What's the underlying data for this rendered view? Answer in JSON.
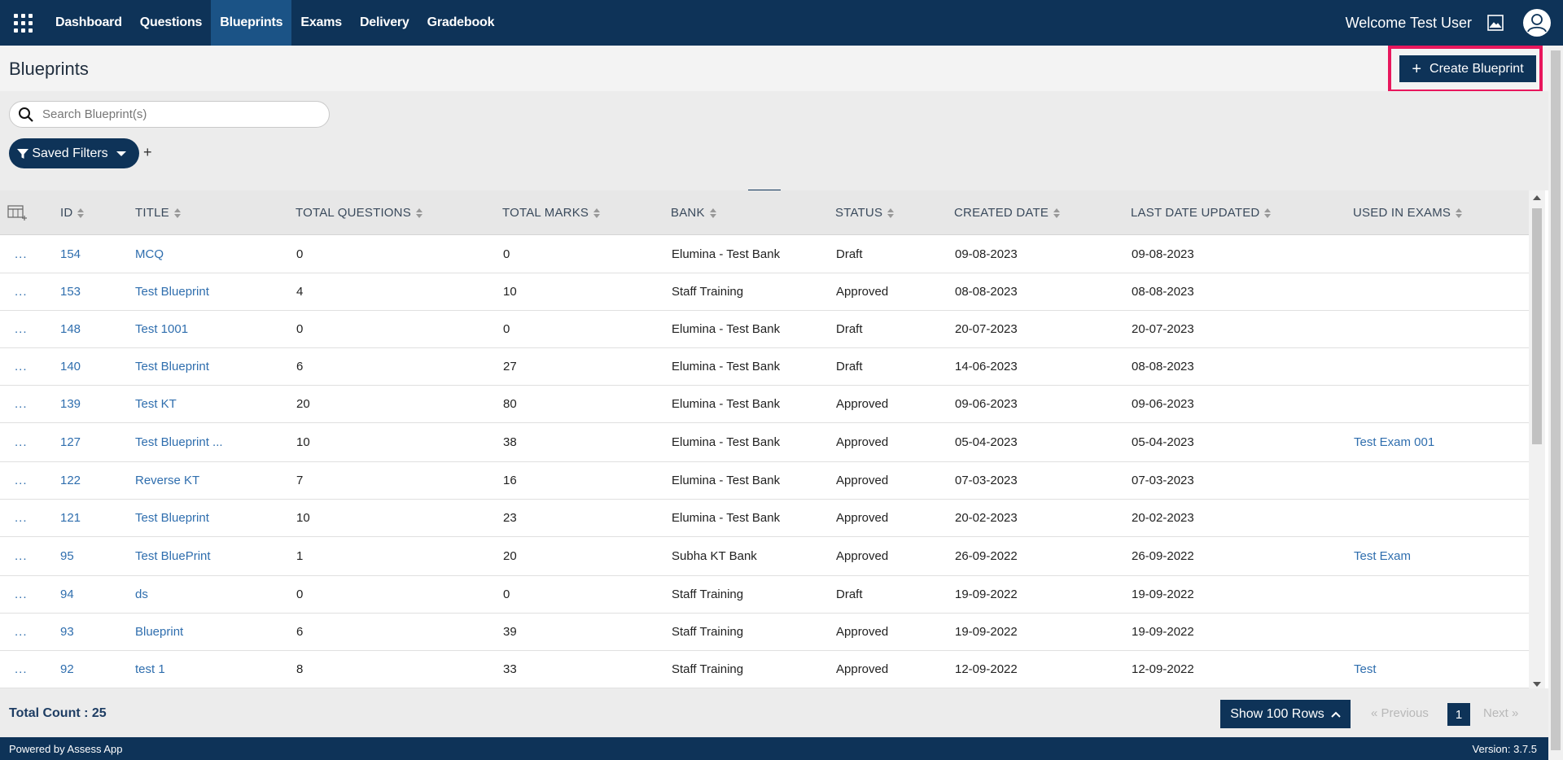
{
  "nav": {
    "items": [
      {
        "label": "Dashboard",
        "active": false
      },
      {
        "label": "Questions",
        "active": false
      },
      {
        "label": "Blueprints",
        "active": true
      },
      {
        "label": "Exams",
        "active": false
      },
      {
        "label": "Delivery",
        "active": false
      },
      {
        "label": "Gradebook",
        "active": false
      }
    ],
    "welcome": "Welcome Test User"
  },
  "page": {
    "title": "Blueprints",
    "create_label": "Create Blueprint"
  },
  "search": {
    "placeholder": "Search Blueprint(s)",
    "value": ""
  },
  "filters": {
    "saved_label": "Saved Filters",
    "add_label": "+"
  },
  "table": {
    "columns": [
      "ID",
      "TITLE",
      "TOTAL QUESTIONS",
      "TOTAL MARKS",
      "BANK",
      "STATUS",
      "CREATED DATE",
      "LAST DATE UPDATED",
      "USED IN EXAMS"
    ],
    "rows": [
      {
        "id": "154",
        "title": "MCQ",
        "total_questions": "0",
        "total_marks": "0",
        "bank": "Elumina - Test Bank",
        "status": "Draft",
        "created": "09-08-2023",
        "updated": "09-08-2023",
        "used_in": ""
      },
      {
        "id": "153",
        "title": "Test Blueprint",
        "total_questions": "4",
        "total_marks": "10",
        "bank": "Staff Training",
        "status": "Approved",
        "created": "08-08-2023",
        "updated": "08-08-2023",
        "used_in": ""
      },
      {
        "id": "148",
        "title": "Test 1001",
        "total_questions": "0",
        "total_marks": "0",
        "bank": "Elumina - Test Bank",
        "status": "Draft",
        "created": "20-07-2023",
        "updated": "20-07-2023",
        "used_in": ""
      },
      {
        "id": "140",
        "title": "Test Blueprint",
        "total_questions": "6",
        "total_marks": "27",
        "bank": "Elumina - Test Bank",
        "status": "Draft",
        "created": "14-06-2023",
        "updated": "08-08-2023",
        "used_in": ""
      },
      {
        "id": "139",
        "title": "Test KT",
        "total_questions": "20",
        "total_marks": "80",
        "bank": "Elumina - Test Bank",
        "status": "Approved",
        "created": "09-06-2023",
        "updated": "09-06-2023",
        "used_in": ""
      },
      {
        "id": "127",
        "title": "Test Blueprint ...",
        "total_questions": "10",
        "total_marks": "38",
        "bank": "Elumina - Test Bank",
        "status": "Approved",
        "created": "05-04-2023",
        "updated": "05-04-2023",
        "used_in": "Test Exam 001"
      },
      {
        "id": "122",
        "title": "Reverse KT",
        "total_questions": "7",
        "total_marks": "16",
        "bank": "Elumina - Test Bank",
        "status": "Approved",
        "created": "07-03-2023",
        "updated": "07-03-2023",
        "used_in": ""
      },
      {
        "id": "121",
        "title": "Test Blueprint",
        "total_questions": "10",
        "total_marks": "23",
        "bank": "Elumina - Test Bank",
        "status": "Approved",
        "created": "20-02-2023",
        "updated": "20-02-2023",
        "used_in": ""
      },
      {
        "id": "95",
        "title": "Test BluePrint",
        "total_questions": "1",
        "total_marks": "20",
        "bank": "Subha KT Bank",
        "status": "Approved",
        "created": "26-09-2022",
        "updated": "26-09-2022",
        "used_in": "Test Exam"
      },
      {
        "id": "94",
        "title": "ds",
        "total_questions": "0",
        "total_marks": "0",
        "bank": "Staff Training",
        "status": "Draft",
        "created": "19-09-2022",
        "updated": "19-09-2022",
        "used_in": ""
      },
      {
        "id": "93",
        "title": "Blueprint",
        "total_questions": "6",
        "total_marks": "39",
        "bank": "Staff Training",
        "status": "Approved",
        "created": "19-09-2022",
        "updated": "19-09-2022",
        "used_in": ""
      },
      {
        "id": "92",
        "title": "test 1",
        "total_questions": "8",
        "total_marks": "33",
        "bank": "Staff Training",
        "status": "Approved",
        "created": "12-09-2022",
        "updated": "12-09-2022",
        "used_in": "Test"
      }
    ],
    "row_menu": "..."
  },
  "footer": {
    "total_count": "Total Count : 25",
    "rows_label": "Show 100 Rows",
    "prev_label": "« Previous",
    "page": "1",
    "next_label": "Next »"
  },
  "bottom": {
    "powered": "Powered by Assess App",
    "version": "Version: 3.7.5"
  },
  "icons": {
    "apps": "apps-grid-icon",
    "image": "image-icon",
    "user": "user-avatar-icon",
    "search": "search-icon",
    "filter": "filter-icon",
    "columns": "column-chooser-icon",
    "sort": "sort-icon"
  },
  "colors": {
    "brand": "#0e3358",
    "nav_active": "#1b5386",
    "link": "#2f6eae",
    "highlight": "#e8175d"
  }
}
